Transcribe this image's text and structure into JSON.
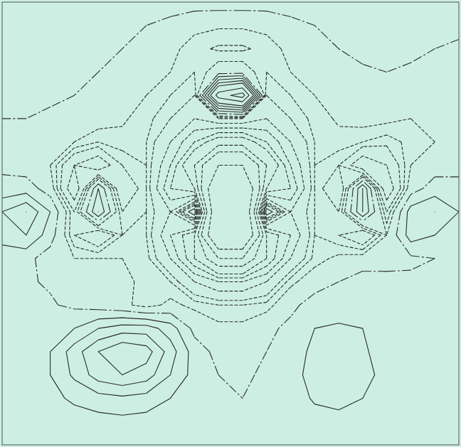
{
  "chart_data": {
    "type": "contour",
    "tick_labels": false,
    "color": "#2a2a2a",
    "levels": [
      -14,
      -10,
      -8,
      -6,
      -5,
      -4,
      -3,
      -2,
      -1.5,
      -1,
      0,
      1,
      2,
      3,
      4,
      6,
      8
    ],
    "z": [
      [
        0.5,
        0.5,
        0.5,
        0.5,
        0.5,
        0.5,
        0.5,
        0.5,
        0.5,
        0.5,
        0.5,
        0.5,
        0.5,
        0.5,
        0.5,
        0.5,
        0.5,
        0.5,
        0.5,
        0.5
      ],
      [
        0.5,
        0.5,
        0.5,
        0.5,
        0.5,
        0.3,
        0,
        -0.3,
        -0.8,
        -0.9,
        -0.9,
        -0.8,
        -0.3,
        0,
        0.3,
        0.5,
        0.5,
        0.5,
        0.3,
        0.3
      ],
      [
        0.5,
        0.5,
        0.5,
        0.5,
        0.3,
        0,
        -0.3,
        -0.8,
        -1.3,
        -1.6,
        -1.6,
        -1.3,
        -0.8,
        -0.3,
        0,
        0.2,
        0.3,
        0.3,
        0,
        -0.2
      ],
      [
        0.3,
        0.3,
        0.3,
        0.2,
        0,
        -0.3,
        -0.6,
        -1,
        -1.5,
        -0.5,
        -0.5,
        -1.5,
        -1,
        -0.6,
        -0.3,
        -0.1,
        0,
        -0.2,
        -0.4,
        -0.5
      ],
      [
        0.2,
        0.2,
        0.1,
        0,
        -0.3,
        -0.6,
        -1,
        -1.5,
        -2,
        7,
        9,
        -2,
        -1.5,
        -1,
        -0.6,
        -0.4,
        -0.5,
        -0.7,
        -0.8,
        -0.8
      ],
      [
        0,
        0,
        -0.1,
        -0.3,
        -0.6,
        -0.9,
        -1.3,
        -2,
        -3,
        -2,
        -2,
        -3,
        -2,
        -1.3,
        -0.9,
        -0.7,
        -0.8,
        -1,
        -1,
        -1
      ],
      [
        -0.1,
        -0.2,
        -0.5,
        -1,
        -1.5,
        -1.2,
        -1.5,
        -3,
        -5,
        -7,
        -7,
        -5,
        -3,
        -1.5,
        -1.2,
        -1.5,
        -1.8,
        -1.3,
        -1,
        -0.8
      ],
      [
        -0.2,
        -0.5,
        -1,
        -3,
        -4,
        -2,
        -1.5,
        -4,
        -8,
        -14,
        -14,
        -8,
        -4,
        -1.5,
        -2,
        -4,
        -3,
        -1,
        -0.5,
        -0.3
      ],
      [
        0.3,
        0.5,
        -0.5,
        -4,
        1,
        -3,
        -1.5,
        -5,
        -6,
        -20,
        -20,
        -6,
        -5,
        -1.5,
        -3,
        2,
        -4,
        -0.5,
        0.5,
        0.3
      ],
      [
        2,
        3,
        1,
        -2,
        2,
        -2,
        -1.5,
        -3,
        1,
        -20,
        -20,
        1,
        -3,
        -1.5,
        -2,
        2,
        -2,
        1.5,
        2,
        1
      ],
      [
        1.5,
        2,
        0.5,
        -2,
        -3,
        -1.5,
        -1.5,
        -4,
        -6,
        -20,
        -20,
        -6,
        -4,
        -1.5,
        -2,
        -3,
        -1,
        1.5,
        1,
        0.5
      ],
      [
        0.3,
        0.3,
        -0.5,
        -1,
        -1,
        -1,
        -1.3,
        -3,
        -6,
        -10,
        -10,
        -6,
        -3,
        -1.3,
        -0.8,
        -0.6,
        -0.5,
        -0.2,
        0,
        0
      ],
      [
        0.2,
        0.1,
        -0.1,
        -0.4,
        -0.6,
        -0.8,
        -1.2,
        -1.5,
        -3,
        -4,
        -4,
        -3,
        -1.2,
        -0.5,
        0,
        0.5,
        0.4,
        0.2,
        0.1,
        0.1
      ],
      [
        0.2,
        0.2,
        0.1,
        -0.2,
        -0.5,
        -0.8,
        -1.3,
        -0.8,
        -1.2,
        -1.5,
        -1.5,
        -1.3,
        -0.3,
        0.5,
        0.3,
        0.3,
        0.4,
        0.3,
        0.2,
        0.1
      ],
      [
        0.2,
        0.3,
        0.5,
        1,
        2,
        2.5,
        2.5,
        1.5,
        -0.3,
        -0.8,
        -0.8,
        -0.3,
        0.3,
        1,
        1.2,
        1,
        0.7,
        0.4,
        0.3,
        0.2
      ],
      [
        0.2,
        0.4,
        1,
        2.5,
        4,
        5,
        4.5,
        2.5,
        0.5,
        -0.3,
        -0.5,
        0,
        0.6,
        1.2,
        1.3,
        1.1,
        0.7,
        0.4,
        0.2,
        0.2
      ],
      [
        0.2,
        0.4,
        1,
        2.2,
        3.5,
        4,
        3.5,
        2,
        0.6,
        0,
        -0.2,
        0.2,
        0.7,
        1.3,
        1.4,
        1.2,
        0.8,
        0.4,
        0.2,
        0.2
      ],
      [
        0.2,
        0.3,
        0.7,
        1.2,
        1.6,
        1.8,
        1.6,
        1,
        0.4,
        0.1,
        0,
        0.2,
        0.6,
        1.1,
        1.2,
        1,
        0.6,
        0.3,
        0.2,
        0.2
      ],
      [
        0.1,
        0.2,
        0.3,
        0.5,
        0.6,
        0.7,
        0.6,
        0.4,
        0.2,
        0.1,
        0.1,
        0.2,
        0.4,
        0.7,
        0.8,
        0.6,
        0.3,
        0.2,
        0.1,
        0.1
      ],
      [
        0.1,
        0.1,
        0.1,
        0.1,
        0.1,
        0.1,
        0.1,
        0.1,
        0.1,
        0.1,
        0.1,
        0.1,
        0.1,
        0.1,
        0.1,
        0.1,
        0.1,
        0.1,
        0.1,
        0.1
      ]
    ]
  }
}
